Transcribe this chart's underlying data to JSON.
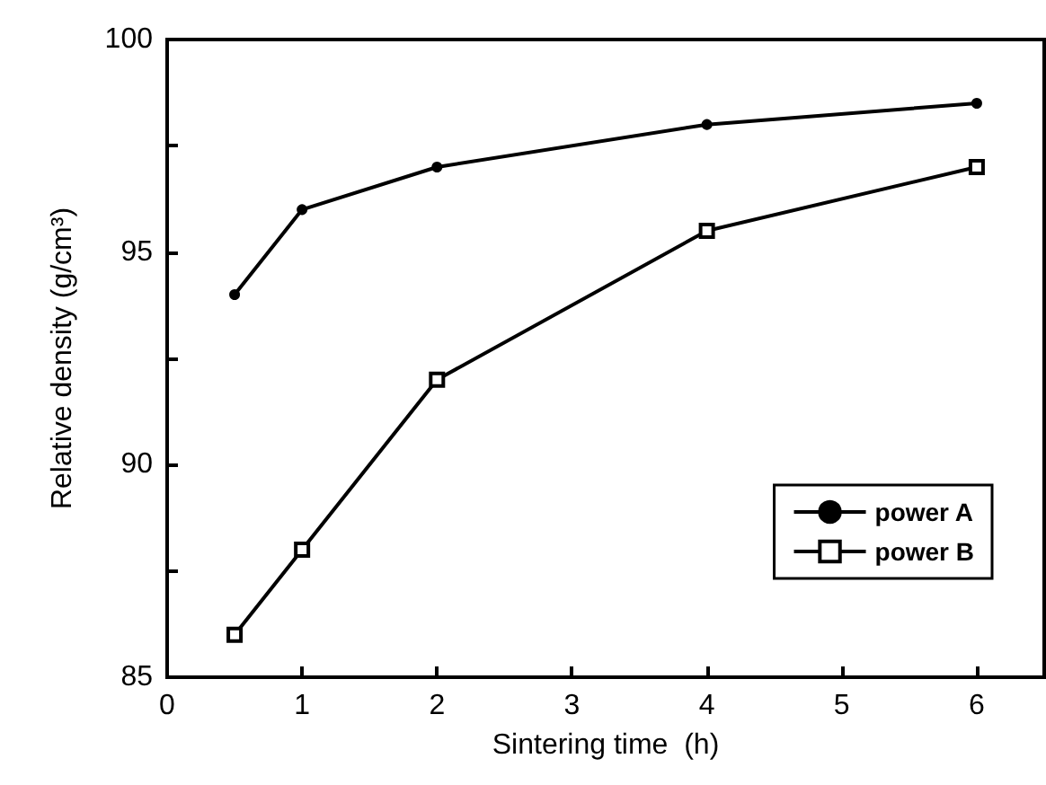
{
  "chart_data": {
    "type": "line",
    "xlabel": "Sintering time  (h)",
    "ylabel": "Relative density (g/cm³)",
    "x": [
      0.5,
      1,
      2,
      4,
      6
    ],
    "series": [
      {
        "name": "power A",
        "color": "#000000",
        "marker": "circle",
        "values": [
          94,
          96,
          97,
          98,
          98.5
        ]
      },
      {
        "name": "power B",
        "color": "#000000",
        "marker": "square",
        "values": [
          86,
          88,
          92,
          95.5,
          97
        ]
      }
    ],
    "xlim": [
      0,
      6.5
    ],
    "xticks": [
      0,
      1,
      2,
      3,
      4,
      5,
      6
    ],
    "ylim": [
      85,
      100
    ],
    "yticks": [
      85,
      {
        "value": 87.5,
        "label": null
      },
      90,
      {
        "value": 92.5,
        "label": null
      },
      95,
      {
        "value": 97.5,
        "label": null
      },
      100
    ],
    "grid": false,
    "legend": "bottom right",
    "line_style": "solid"
  }
}
